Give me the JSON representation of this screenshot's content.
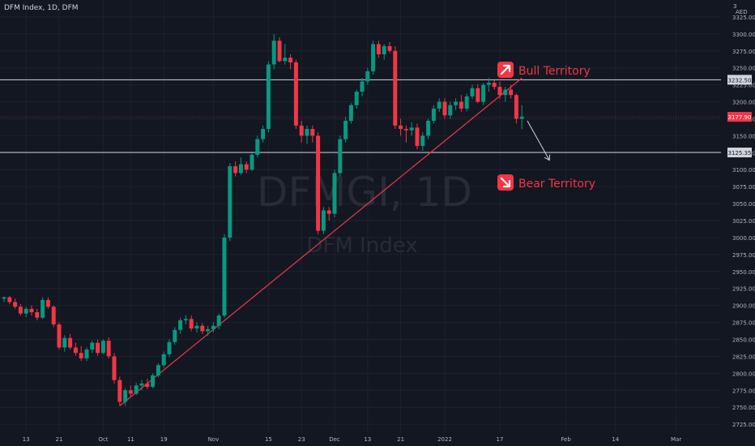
{
  "header": {
    "symbol_name": "DFM Index",
    "interval": "1D",
    "exchange": "DFM"
  },
  "watermark": {
    "symbol": "DFMGI, 1D",
    "description": "DFM Index"
  },
  "axis_top": {
    "currency": "AED",
    "top_value": "3"
  },
  "annotations": {
    "bull_label": "Bull Territory",
    "bear_label": "Bear Territory"
  },
  "colors": {
    "background": "#131722",
    "up": "#089981",
    "down": "#f23645",
    "trendline": "#f23645",
    "hline": "#d1d4dc",
    "text": "#b2b5be",
    "grid": "#1e222d"
  },
  "chart_data": {
    "type": "candlestick",
    "title": "",
    "ylim": [
      2712,
      3350
    ],
    "y_ticks": [
      2725,
      2750,
      2775,
      2800,
      2825,
      2850,
      2875,
      2900,
      2925,
      2950,
      2975,
      3000,
      3025,
      3050,
      3075,
      3100,
      3125,
      3150,
      3175,
      3200,
      3225,
      3250,
      3275,
      3300,
      3325
    ],
    "y_tick_labels": [
      "2725.00",
      "2750.00",
      "2775.00",
      "2800.00",
      "2825.00",
      "2850.00",
      "2875.00",
      "2900.00",
      "2925.00",
      "2950.00",
      "2975.00",
      "3000.00",
      "3025.00",
      "3050.00",
      "3075.00",
      "3100.00",
      "3125.00",
      "3150.00",
      "3175.00",
      "3200.00",
      "3225.00",
      "3250.00",
      "3275.00",
      "3300.00",
      "3325.00"
    ],
    "x_ticks": [
      {
        "label": "13",
        "i": 4
      },
      {
        "label": "21",
        "i": 10
      },
      {
        "label": "Oct",
        "i": 18
      },
      {
        "label": "11",
        "i": 23
      },
      {
        "label": "19",
        "i": 29
      },
      {
        "label": "Nov",
        "i": 38
      },
      {
        "label": "15",
        "i": 48
      },
      {
        "label": "23",
        "i": 54
      },
      {
        "label": "Dec",
        "i": 60
      },
      {
        "label": "13",
        "i": 66
      },
      {
        "label": "21",
        "i": 72
      },
      {
        "label": "2022",
        "i": 80
      },
      {
        "label": "17",
        "i": 90
      },
      {
        "label": "Feb",
        "i": 102
      },
      {
        "label": "14",
        "i": 111
      },
      {
        "label": "Mar",
        "i": 122
      }
    ],
    "candles": [
      [
        2910,
        2913,
        2905,
        2912
      ],
      [
        2912,
        2914,
        2902,
        2905
      ],
      [
        2905,
        2910,
        2895,
        2898
      ],
      [
        2898,
        2902,
        2885,
        2888
      ],
      [
        2888,
        2898,
        2883,
        2895
      ],
      [
        2895,
        2900,
        2885,
        2890
      ],
      [
        2890,
        2895,
        2878,
        2882
      ],
      [
        2882,
        2912,
        2880,
        2908
      ],
      [
        2908,
        2912,
        2895,
        2898
      ],
      [
        2898,
        2900,
        2868,
        2872
      ],
      [
        2872,
        2875,
        2835,
        2838
      ],
      [
        2838,
        2856,
        2832,
        2852
      ],
      [
        2852,
        2858,
        2835,
        2838
      ],
      [
        2838,
        2845,
        2826,
        2830
      ],
      [
        2830,
        2840,
        2818,
        2822
      ],
      [
        2822,
        2838,
        2818,
        2835
      ],
      [
        2835,
        2848,
        2830,
        2845
      ],
      [
        2845,
        2850,
        2826,
        2830
      ],
      [
        2830,
        2850,
        2828,
        2848
      ],
      [
        2848,
        2853,
        2822,
        2825
      ],
      [
        2825,
        2830,
        2785,
        2790
      ],
      [
        2790,
        2795,
        2752,
        2758
      ],
      [
        2758,
        2778,
        2752,
        2775
      ],
      [
        2775,
        2782,
        2765,
        2770
      ],
      [
        2770,
        2786,
        2768,
        2782
      ],
      [
        2782,
        2790,
        2775,
        2785
      ],
      [
        2785,
        2792,
        2777,
        2780
      ],
      [
        2780,
        2800,
        2778,
        2797
      ],
      [
        2797,
        2815,
        2794,
        2812
      ],
      [
        2812,
        2832,
        2808,
        2828
      ],
      [
        2828,
        2850,
        2824,
        2846
      ],
      [
        2846,
        2868,
        2842,
        2864
      ],
      [
        2864,
        2882,
        2858,
        2878
      ],
      [
        2878,
        2886,
        2872,
        2880
      ],
      [
        2880,
        2885,
        2862,
        2866
      ],
      [
        2866,
        2875,
        2860,
        2870
      ],
      [
        2870,
        2874,
        2858,
        2862
      ],
      [
        2862,
        2870,
        2855,
        2865
      ],
      [
        2865,
        2875,
        2860,
        2870
      ],
      [
        2870,
        2888,
        2865,
        2885
      ],
      [
        2885,
        3005,
        2882,
        3000
      ],
      [
        3000,
        3110,
        2995,
        3105
      ],
      [
        3105,
        3112,
        3090,
        3095
      ],
      [
        3095,
        3118,
        3092,
        3108
      ],
      [
        3108,
        3112,
        3095,
        3100
      ],
      [
        3100,
        3125,
        3098,
        3122
      ],
      [
        3122,
        3150,
        3118,
        3145
      ],
      [
        3145,
        3165,
        3140,
        3160
      ],
      [
        3160,
        3260,
        3155,
        3255
      ],
      [
        3255,
        3300,
        3248,
        3290
      ],
      [
        3290,
        3295,
        3258,
        3260
      ],
      [
        3260,
        3285,
        3255,
        3265
      ],
      [
        3265,
        3270,
        3248,
        3258
      ],
      [
        3258,
        3262,
        3160,
        3165
      ],
      [
        3165,
        3172,
        3140,
        3150
      ],
      [
        3150,
        3165,
        3138,
        3160
      ],
      [
        3160,
        3165,
        3140,
        3150
      ],
      [
        3150,
        3155,
        3005,
        3010
      ],
      [
        3010,
        3045,
        3005,
        3040
      ],
      [
        3040,
        3045,
        3025,
        3035
      ],
      [
        3035,
        3100,
        3030,
        3095
      ],
      [
        3095,
        3150,
        3090,
        3145
      ],
      [
        3145,
        3178,
        3140,
        3172
      ],
      [
        3172,
        3198,
        3168,
        3195
      ],
      [
        3195,
        3218,
        3190,
        3215
      ],
      [
        3215,
        3235,
        3208,
        3230
      ],
      [
        3230,
        3250,
        3225,
        3245
      ],
      [
        3245,
        3290,
        3240,
        3285
      ],
      [
        3285,
        3290,
        3265,
        3270
      ],
      [
        3270,
        3285,
        3262,
        3282
      ],
      [
        3282,
        3288,
        3272,
        3275
      ],
      [
        3275,
        3282,
        3160,
        3165
      ],
      [
        3165,
        3175,
        3150,
        3160
      ],
      [
        3160,
        3165,
        3140,
        3158
      ],
      [
        3158,
        3170,
        3150,
        3162
      ],
      [
        3162,
        3168,
        3130,
        3135
      ],
      [
        3135,
        3155,
        3128,
        3150
      ],
      [
        3150,
        3175,
        3145,
        3172
      ],
      [
        3172,
        3195,
        3168,
        3190
      ],
      [
        3190,
        3205,
        3185,
        3200
      ],
      [
        3200,
        3205,
        3175,
        3180
      ],
      [
        3180,
        3200,
        3175,
        3195
      ],
      [
        3195,
        3205,
        3188,
        3200
      ],
      [
        3200,
        3210,
        3185,
        3190
      ],
      [
        3190,
        3212,
        3186,
        3208
      ],
      [
        3208,
        3225,
        3204,
        3220
      ],
      [
        3220,
        3226,
        3198,
        3200
      ],
      [
        3200,
        3228,
        3195,
        3225
      ],
      [
        3225,
        3235,
        3215,
        3228
      ],
      [
        3228,
        3232,
        3218,
        3222
      ],
      [
        3222,
        3230,
        3205,
        3210
      ],
      [
        3210,
        3222,
        3200,
        3218
      ],
      [
        3218,
        3225,
        3205,
        3210
      ],
      [
        3210,
        3212,
        3168,
        3175
      ],
      [
        3175,
        3195,
        3160,
        3178
      ]
    ],
    "horizontal_lines": [
      {
        "value": 3232.5,
        "label": "3232.50"
      },
      {
        "value": 3125.35,
        "label": "3125.35"
      }
    ],
    "last_price": {
      "value": 3177.9,
      "label": "3177.90"
    },
    "trendline": {
      "from": {
        "i": 21,
        "value": 2752
      },
      "to": {
        "i": 94,
        "value": 3235
      }
    },
    "projection": {
      "from": {
        "i": 95,
        "value": 3172
      },
      "to": {
        "i": 99,
        "value": 3114
      }
    }
  }
}
